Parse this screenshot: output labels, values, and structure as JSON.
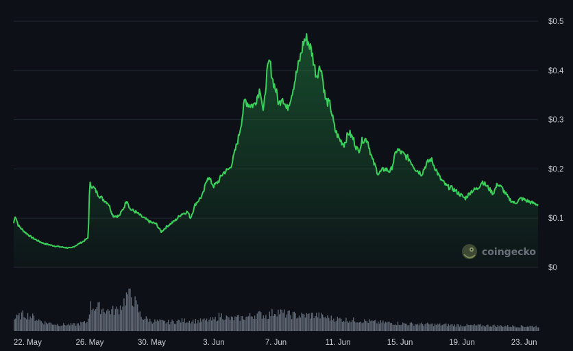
{
  "chart_data": {
    "type": "area",
    "ylim": [
      0,
      0.5
    ],
    "y_ticks": [
      "$0",
      "$0.1",
      "$0.2",
      "$0.3",
      "$0.4",
      "$0.5"
    ],
    "x_ticks": [
      "22. May",
      "26. May",
      "30. May",
      "3. Jun",
      "7. Jun",
      "11. Jun",
      "15. Jun",
      "19. Jun",
      "23. Jun"
    ],
    "x_tick_days": [
      1,
      5,
      9,
      13,
      17,
      21,
      25,
      29,
      33
    ],
    "x_domain_days": [
      0.1,
      33.9
    ],
    "grid": true,
    "line_color": "#3ad15a",
    "price_keypoints": [
      [
        0.1,
        0.09
      ],
      [
        0.2,
        0.105
      ],
      [
        0.4,
        0.085
      ],
      [
        0.7,
        0.075
      ],
      [
        1.2,
        0.062
      ],
      [
        1.6,
        0.055
      ],
      [
        2.0,
        0.049
      ],
      [
        2.5,
        0.045
      ],
      [
        3.0,
        0.042
      ],
      [
        3.5,
        0.04
      ],
      [
        3.8,
        0.039
      ],
      [
        4.3,
        0.048
      ],
      [
        4.6,
        0.053
      ],
      [
        4.9,
        0.06
      ],
      [
        5.0,
        0.17
      ],
      [
        5.3,
        0.16
      ],
      [
        5.5,
        0.15
      ],
      [
        5.8,
        0.14
      ],
      [
        6.2,
        0.13
      ],
      [
        6.5,
        0.105
      ],
      [
        6.9,
        0.104
      ],
      [
        7.2,
        0.122
      ],
      [
        7.4,
        0.138
      ],
      [
        7.6,
        0.118
      ],
      [
        8.0,
        0.112
      ],
      [
        8.4,
        0.102
      ],
      [
        8.9,
        0.092
      ],
      [
        9.3,
        0.088
      ],
      [
        9.6,
        0.072
      ],
      [
        10.0,
        0.084
      ],
      [
        10.5,
        0.095
      ],
      [
        10.9,
        0.108
      ],
      [
        11.3,
        0.113
      ],
      [
        11.5,
        0.1
      ],
      [
        11.8,
        0.128
      ],
      [
        12.3,
        0.148
      ],
      [
        12.6,
        0.185
      ],
      [
        13.0,
        0.165
      ],
      [
        13.3,
        0.175
      ],
      [
        13.6,
        0.192
      ],
      [
        14.0,
        0.2
      ],
      [
        14.2,
        0.215
      ],
      [
        14.6,
        0.265
      ],
      [
        14.8,
        0.3
      ],
      [
        15.0,
        0.34
      ],
      [
        15.3,
        0.33
      ],
      [
        15.6,
        0.33
      ],
      [
        16.0,
        0.365
      ],
      [
        16.2,
        0.31
      ],
      [
        16.4,
        0.39
      ],
      [
        16.6,
        0.42
      ],
      [
        16.8,
        0.38
      ],
      [
        17.0,
        0.36
      ],
      [
        17.2,
        0.33
      ],
      [
        17.4,
        0.35
      ],
      [
        17.7,
        0.32
      ],
      [
        18.0,
        0.35
      ],
      [
        18.3,
        0.39
      ],
      [
        18.6,
        0.43
      ],
      [
        18.8,
        0.46
      ],
      [
        19.0,
        0.465
      ],
      [
        19.3,
        0.44
      ],
      [
        19.6,
        0.39
      ],
      [
        19.9,
        0.41
      ],
      [
        20.2,
        0.34
      ],
      [
        20.5,
        0.33
      ],
      [
        20.8,
        0.28
      ],
      [
        21.1,
        0.26
      ],
      [
        21.4,
        0.25
      ],
      [
        21.7,
        0.275
      ],
      [
        22.0,
        0.26
      ],
      [
        22.3,
        0.235
      ],
      [
        22.6,
        0.26
      ],
      [
        22.9,
        0.26
      ],
      [
        23.2,
        0.22
      ],
      [
        23.6,
        0.19
      ],
      [
        24.0,
        0.2
      ],
      [
        24.4,
        0.195
      ],
      [
        24.8,
        0.24
      ],
      [
        25.2,
        0.23
      ],
      [
        25.6,
        0.22
      ],
      [
        26.0,
        0.2
      ],
      [
        26.4,
        0.19
      ],
      [
        26.7,
        0.21
      ],
      [
        27.0,
        0.22
      ],
      [
        27.3,
        0.2
      ],
      [
        27.6,
        0.18
      ],
      [
        28.0,
        0.165
      ],
      [
        28.4,
        0.16
      ],
      [
        28.8,
        0.15
      ],
      [
        29.2,
        0.14
      ],
      [
        29.6,
        0.155
      ],
      [
        30.0,
        0.16
      ],
      [
        30.3,
        0.175
      ],
      [
        30.6,
        0.165
      ],
      [
        31.0,
        0.15
      ],
      [
        31.3,
        0.17
      ],
      [
        31.6,
        0.16
      ],
      [
        32.0,
        0.14
      ],
      [
        32.4,
        0.13
      ],
      [
        32.8,
        0.14
      ],
      [
        33.2,
        0.135
      ],
      [
        33.6,
        0.13
      ],
      [
        33.9,
        0.128
      ]
    ],
    "volume_keypoints": [
      [
        0.1,
        0.3
      ],
      [
        0.7,
        0.42
      ],
      [
        1.3,
        0.35
      ],
      [
        2.0,
        0.22
      ],
      [
        3.0,
        0.16
      ],
      [
        4.0,
        0.16
      ],
      [
        4.8,
        0.22
      ],
      [
        5.0,
        0.62
      ],
      [
        5.6,
        0.58
      ],
      [
        6.2,
        0.5
      ],
      [
        6.8,
        0.52
      ],
      [
        7.2,
        0.75
      ],
      [
        7.5,
        0.98
      ],
      [
        7.9,
        0.7
      ],
      [
        8.3,
        0.35
      ],
      [
        9.0,
        0.25
      ],
      [
        10.0,
        0.22
      ],
      [
        11.0,
        0.26
      ],
      [
        12.0,
        0.25
      ],
      [
        13.0,
        0.28
      ],
      [
        13.4,
        0.4
      ],
      [
        14.0,
        0.3
      ],
      [
        15.0,
        0.34
      ],
      [
        15.8,
        0.42
      ],
      [
        16.4,
        0.38
      ],
      [
        17.0,
        0.5
      ],
      [
        17.6,
        0.42
      ],
      [
        18.5,
        0.38
      ],
      [
        19.5,
        0.4
      ],
      [
        20.5,
        0.32
      ],
      [
        21.5,
        0.28
      ],
      [
        22.5,
        0.26
      ],
      [
        23.5,
        0.22
      ],
      [
        24.5,
        0.2
      ],
      [
        25.5,
        0.18
      ],
      [
        26.5,
        0.17
      ],
      [
        27.5,
        0.16
      ],
      [
        28.5,
        0.15
      ],
      [
        29.5,
        0.14
      ],
      [
        30.5,
        0.14
      ],
      [
        31.5,
        0.13
      ],
      [
        32.5,
        0.12
      ],
      [
        33.9,
        0.12
      ]
    ],
    "volume_bar_color": "#6f7885"
  },
  "watermark": {
    "text": "coingecko",
    "icon": "gecko-logo-icon"
  }
}
